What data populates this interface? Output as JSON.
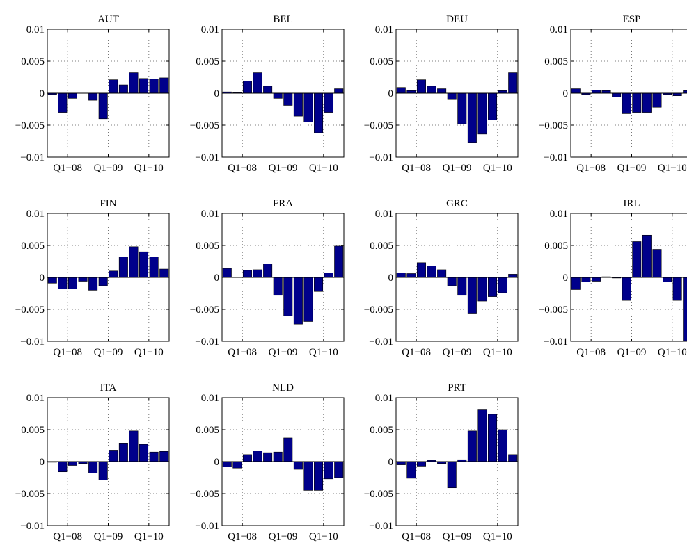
{
  "chart_data": {
    "type": "bar",
    "bar_color": "#00008B",
    "ylim": [
      -0.01,
      0.01
    ],
    "yticks": [
      0.01,
      0.005,
      0,
      -0.005,
      -0.01
    ],
    "ytick_labels": [
      "0.01",
      "0.005",
      "0",
      "−0.005",
      "−0.01"
    ],
    "xtick_labels": [
      "Q1−08",
      "Q1−09",
      "Q1−10"
    ],
    "grid": true,
    "panels": [
      {
        "title": "AUT",
        "values": [
          -0.0002,
          -0.003,
          -0.0008,
          0.0,
          -0.0011,
          -0.004,
          0.0021,
          0.0013,
          0.0032,
          0.0023,
          0.0022,
          0.0024
        ]
      },
      {
        "title": "BEL",
        "values": [
          0.0002,
          0.0001,
          0.0019,
          0.0032,
          0.0011,
          -0.0008,
          -0.0019,
          -0.0036,
          -0.0045,
          -0.0062,
          -0.003,
          0.0007
        ]
      },
      {
        "title": "DEU",
        "values": [
          0.0009,
          0.0004,
          0.0021,
          0.0011,
          0.0007,
          -0.001,
          -0.0048,
          -0.0077,
          -0.0064,
          -0.0042,
          0.0004,
          0.0032
        ]
      },
      {
        "title": "ESP",
        "values": [
          0.0007,
          -0.0002,
          0.0005,
          0.0004,
          -0.0006,
          -0.0032,
          -0.003,
          -0.003,
          -0.0022,
          -0.0002,
          -0.0004,
          0.0004
        ]
      },
      {
        "title": "FIN",
        "values": [
          -0.0009,
          -0.0018,
          -0.0018,
          -0.0006,
          -0.002,
          -0.0013,
          0.001,
          0.0032,
          0.0048,
          0.004,
          0.0032,
          0.0013
        ]
      },
      {
        "title": "FRA",
        "values": [
          0.0014,
          0.0,
          0.0011,
          0.0012,
          0.0021,
          -0.0028,
          -0.006,
          -0.0073,
          -0.0069,
          -0.0022,
          0.0007,
          0.0049
        ]
      },
      {
        "title": "GRC",
        "values": [
          0.0007,
          0.0006,
          0.0023,
          0.0018,
          0.0012,
          -0.0013,
          -0.0028,
          -0.0056,
          -0.0037,
          -0.003,
          -0.0024,
          0.0005
        ]
      },
      {
        "title": "IRL",
        "values": [
          -0.0019,
          -0.0007,
          -0.0006,
          0.0001,
          -0.0001,
          -0.0036,
          0.0056,
          0.0066,
          0.0044,
          -0.0007,
          -0.0036,
          -0.0099
        ]
      },
      {
        "title": "ITA",
        "values": [
          -0.0001,
          -0.0016,
          -0.0006,
          -0.0003,
          -0.0018,
          -0.0029,
          0.0018,
          0.0029,
          0.0048,
          0.0027,
          0.0015,
          0.0016
        ]
      },
      {
        "title": "NLD",
        "values": [
          -0.0008,
          -0.001,
          0.0011,
          0.0017,
          0.0014,
          0.0015,
          0.0037,
          -0.0012,
          -0.0045,
          -0.0045,
          -0.0027,
          -0.0025
        ]
      },
      {
        "title": "PRT",
        "values": [
          -0.0005,
          -0.0026,
          -0.0007,
          0.0002,
          -0.0003,
          -0.0041,
          0.0003,
          0.0048,
          0.0082,
          0.0074,
          0.005,
          0.0011
        ]
      }
    ]
  }
}
